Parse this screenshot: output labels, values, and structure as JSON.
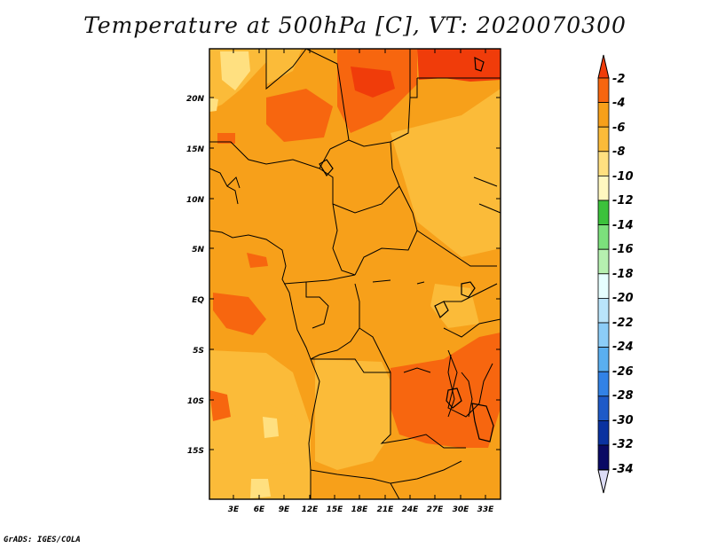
{
  "title": "Temperature at 500hPa [C], VT: 2020070300",
  "credit": "GrADS: IGES/COLA",
  "map": {
    "lon_labels": [
      "3E",
      "6E",
      "9E",
      "12E",
      "15E",
      "18E",
      "21E",
      "24E",
      "27E",
      "30E",
      "33E"
    ],
    "lat_labels": [
      "20N",
      "15N",
      "10N",
      "5N",
      "EQ",
      "5S",
      "10S",
      "15S"
    ],
    "region": "Central Africa",
    "field_range_c": [
      -10,
      -2
    ]
  },
  "colorbar": {
    "labels": [
      "-2",
      "-4",
      "-6",
      "-8",
      "-10",
      "-12",
      "-14",
      "-16",
      "-18",
      "-20",
      "-22",
      "-24",
      "-26",
      "-28",
      "-30",
      "-32",
      "-34"
    ],
    "colors": [
      "#f03c0a",
      "#f7660f",
      "#f7a01a",
      "#fbbb39",
      "#ffe080",
      "#fff8c0",
      "#3cc23c",
      "#7ce07c",
      "#b6f0b0",
      "#e6ffff",
      "#b9e4fa",
      "#8ccdf8",
      "#5aaff0",
      "#3282e6",
      "#1e5ac8",
      "#0a32a0",
      "#0a0a64",
      "#dcdcf5"
    ]
  },
  "field_colors": {
    "base": "#f7a01a",
    "light": "#fbbb39",
    "pale": "#ffe080",
    "warm": "#f7660f",
    "hot": "#f03c0a"
  }
}
